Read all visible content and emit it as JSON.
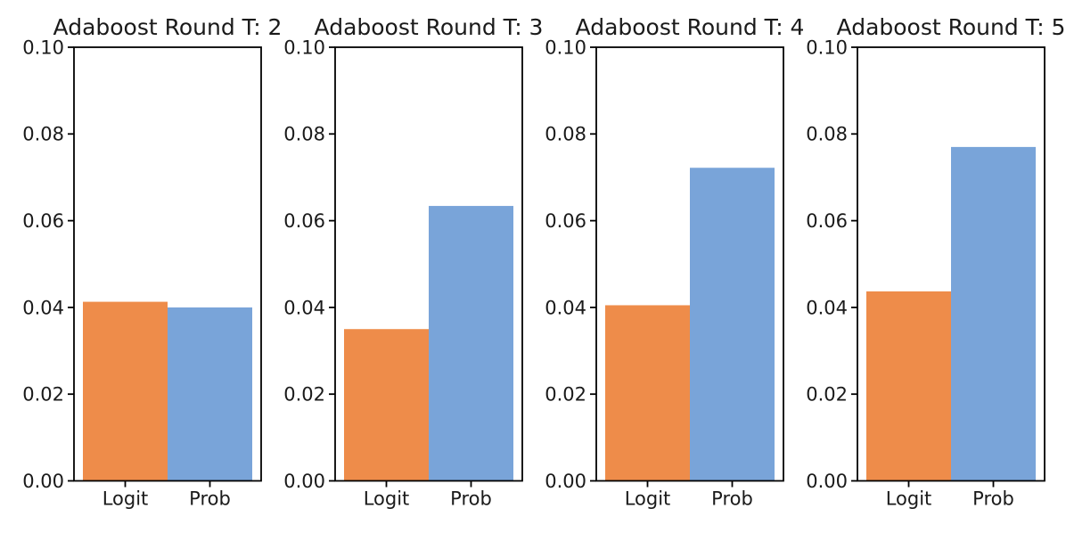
{
  "figure": {
    "background": "#ffffff",
    "text_color": "#1a1a1a",
    "spine_color": "#000000"
  },
  "palette": {
    "logit_bar": "#ee8c4a",
    "prob_bar": "#79a4d9"
  },
  "chart_data": [
    {
      "type": "bar",
      "title": "Adaboost Round T: 2",
      "categories": [
        "Logit",
        "Prob"
      ],
      "values": [
        0.0413,
        0.04
      ],
      "xlabel": "",
      "ylabel": "",
      "ylim": [
        0.0,
        0.1
      ],
      "yticks": [
        0.0,
        0.02,
        0.04,
        0.06,
        0.08,
        0.1
      ],
      "grid": false,
      "legend": "none"
    },
    {
      "type": "bar",
      "title": "Adaboost Round T: 3",
      "categories": [
        "Logit",
        "Prob"
      ],
      "values": [
        0.035,
        0.0634
      ],
      "xlabel": "",
      "ylabel": "",
      "ylim": [
        0.0,
        0.1
      ],
      "yticks": [
        0.0,
        0.02,
        0.04,
        0.06,
        0.08,
        0.1
      ],
      "grid": false,
      "legend": "none"
    },
    {
      "type": "bar",
      "title": "Adaboost Round T: 4",
      "categories": [
        "Logit",
        "Prob"
      ],
      "values": [
        0.0405,
        0.0722
      ],
      "xlabel": "",
      "ylabel": "",
      "ylim": [
        0.0,
        0.1
      ],
      "yticks": [
        0.0,
        0.02,
        0.04,
        0.06,
        0.08,
        0.1
      ],
      "grid": false,
      "legend": "none"
    },
    {
      "type": "bar",
      "title": "Adaboost Round T: 5",
      "categories": [
        "Logit",
        "Prob"
      ],
      "values": [
        0.0437,
        0.077
      ],
      "xlabel": "",
      "ylabel": "",
      "ylim": [
        0.0,
        0.1
      ],
      "yticks": [
        0.0,
        0.02,
        0.04,
        0.06,
        0.08,
        0.1
      ],
      "grid": false,
      "legend": "none"
    }
  ]
}
